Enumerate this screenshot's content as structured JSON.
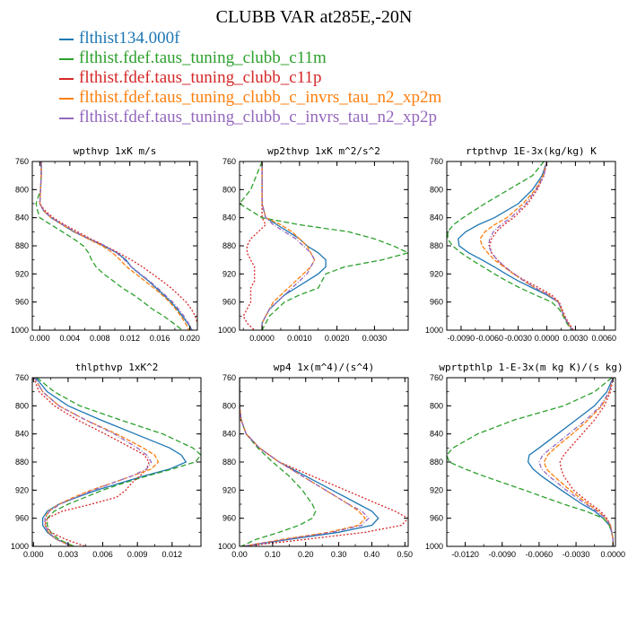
{
  "title": "CLUBB VAR at285E,-20N",
  "legend": [
    {
      "label": "flthist134.000f",
      "color": "#1f77b4",
      "dash": ""
    },
    {
      "label": "flthist.fdef.taus_tuning_clubb_c11m",
      "color": "#2ca02c",
      "dash": "6,3"
    },
    {
      "label": "flthist.fdef.taus_tuning_clubb_c11p",
      "color": "#d62728",
      "dash": "2,2"
    },
    {
      "label": "flthist.fdef.taus_tuning_clubb_c_invrs_tau_n2_xp2m",
      "color": "#ff7f0e",
      "dash": "5,2"
    },
    {
      "label": "flthist.fdef.taus_tuning_clubb_c_invrs_tau_n2_xp2p",
      "color": "#9467bd",
      "dash": "5,2,1,2"
    }
  ],
  "chart_data": [
    {
      "type": "line",
      "title": "wpthvp  1xK m/s",
      "xlim": [
        -0.001,
        0.021
      ],
      "xticks": [
        0,
        0.004,
        0.008,
        0.012,
        0.016,
        0.02
      ],
      "xticklabels": [
        "0.000",
        "0.004",
        "0.008",
        "0.012",
        "0.016",
        "0.020"
      ],
      "ylim": [
        760,
        1000
      ],
      "yticks": [
        760,
        800,
        840,
        880,
        920,
        960,
        1000
      ],
      "y": [
        760,
        780,
        800,
        820,
        830,
        840,
        850,
        860,
        870,
        880,
        890,
        900,
        910,
        920,
        930,
        940,
        950,
        960,
        970,
        980,
        990,
        1000
      ],
      "series": [
        {
          "values": [
            0.0002,
            0.0002,
            0.0001,
            0.0,
            0.0005,
            0.0015,
            0.003,
            0.0045,
            0.0065,
            0.0085,
            0.0103,
            0.0115,
            0.0122,
            0.0133,
            0.0145,
            0.0155,
            0.0165,
            0.0175,
            0.0183,
            0.019,
            0.0197,
            0.0203
          ]
        },
        {
          "values": [
            0.0002,
            0.0002,
            0.0001,
            -0.0005,
            -0.0003,
            0.0,
            0.0015,
            0.003,
            0.0045,
            0.0058,
            0.0065,
            0.0069,
            0.0075,
            0.0085,
            0.0098,
            0.011,
            0.0125,
            0.0138,
            0.015,
            0.0165,
            0.0178,
            0.019
          ]
        },
        {
          "values": [
            0.0002,
            0.0002,
            0.0001,
            0.0,
            0.0007,
            0.0018,
            0.0033,
            0.005,
            0.0068,
            0.0087,
            0.0105,
            0.0122,
            0.0137,
            0.015,
            0.0163,
            0.0175,
            0.0185,
            0.0195,
            0.0202,
            0.0207,
            0.021,
            0.0212
          ]
        },
        {
          "values": [
            0.0002,
            0.0002,
            0.0001,
            0.0,
            0.0005,
            0.0015,
            0.003,
            0.0046,
            0.0064,
            0.0083,
            0.0097,
            0.0107,
            0.0116,
            0.0128,
            0.014,
            0.0152,
            0.0163,
            0.0173,
            0.0181,
            0.0188,
            0.0194,
            0.0199
          ]
        },
        {
          "values": [
            0.0002,
            0.0002,
            0.0001,
            0.0,
            0.0005,
            0.0016,
            0.0031,
            0.0047,
            0.0066,
            0.0087,
            0.0102,
            0.0113,
            0.0122,
            0.0134,
            0.0146,
            0.0157,
            0.0167,
            0.0177,
            0.0185,
            0.0192,
            0.0198,
            0.0203
          ]
        }
      ]
    },
    {
      "type": "line",
      "title": "wp2thvp  1xK m^2/s^2",
      "xlim": [
        -0.0006,
        0.0039
      ],
      "xticks": [
        0,
        0.001,
        0.002,
        0.003
      ],
      "xticklabels": [
        "0.0000",
        "0.0010",
        "0.0020",
        "0.0030"
      ],
      "ylim": [
        760,
        1000
      ],
      "yticks": [
        760,
        800,
        840,
        880,
        920,
        960,
        1000
      ],
      "y": [
        760,
        800,
        820,
        840,
        850,
        860,
        870,
        880,
        890,
        900,
        910,
        920,
        930,
        940,
        950,
        960,
        970,
        980,
        990,
        1000
      ],
      "series": [
        {
          "values": [
            0.0,
            0.0,
            0.0,
            0.0001,
            0.0004,
            0.0007,
            0.001,
            0.0012,
            0.0015,
            0.0017,
            0.0017,
            0.0015,
            0.0012,
            0.0009,
            0.0006,
            0.0004,
            0.0002,
            0.0001,
            0.0,
            0.0
          ]
        },
        {
          "values": [
            0.0,
            -0.0003,
            -0.0006,
            0.0,
            0.001,
            0.0023,
            0.003,
            0.0035,
            0.0039,
            0.0032,
            0.0022,
            0.0017,
            0.0016,
            0.0015,
            0.001,
            0.0006,
            0.0004,
            0.0002,
            0.0001,
            0.0
          ]
        },
        {
          "values": [
            0.0,
            0.0,
            0.0,
            0.0,
            0.0001,
            -0.0001,
            -0.0003,
            -0.0004,
            -0.0004,
            -0.0003,
            -0.0002,
            -0.0002,
            -0.0002,
            -0.0003,
            -0.0003,
            -0.0003,
            -0.0004,
            -0.0005,
            -0.0004,
            -0.0002
          ]
        },
        {
          "values": [
            0.0,
            0.0,
            0.0,
            0.0001,
            0.0005,
            0.0008,
            0.001,
            0.0012,
            0.0013,
            0.0014,
            0.0013,
            0.0011,
            0.0009,
            0.0007,
            0.0005,
            0.0003,
            0.0002,
            0.0001,
            0.0,
            0.0
          ]
        },
        {
          "values": [
            0.0,
            0.0,
            0.0,
            0.0001,
            0.0003,
            0.0006,
            0.0009,
            0.0011,
            0.0013,
            0.0014,
            0.0013,
            0.0012,
            0.001,
            0.0008,
            0.0006,
            0.0004,
            0.0002,
            0.0001,
            0.0,
            0.0
          ]
        }
      ]
    },
    {
      "type": "line",
      "title": "rtpthvp  1E-3x(kg/kg) K",
      "xlim": [
        -0.0105,
        0.0072
      ],
      "xticks": [
        -0.009,
        -0.006,
        -0.003,
        0,
        0.003,
        0.006
      ],
      "xticklabels": [
        "-0.0090",
        "-0.0060",
        "-0.0030",
        "0.0000",
        "0.0030",
        "0.0060"
      ],
      "ylim": [
        760,
        1000
      ],
      "yticks": [
        760,
        800,
        840,
        880,
        920,
        960,
        1000
      ],
      "y": [
        760,
        780,
        800,
        820,
        840,
        850,
        860,
        870,
        880,
        890,
        900,
        910,
        920,
        930,
        940,
        950,
        960,
        970,
        980,
        990,
        1000
      ],
      "series": [
        {
          "values": [
            0.0,
            -0.0005,
            -0.0015,
            -0.003,
            -0.0055,
            -0.0072,
            -0.0085,
            -0.0093,
            -0.0092,
            -0.0082,
            -0.0068,
            -0.0055,
            -0.0043,
            -0.003,
            -0.0015,
            0.0,
            0.0012,
            0.0015,
            0.0018,
            0.0022,
            0.0027
          ]
        },
        {
          "values": [
            -0.0003,
            -0.0015,
            -0.004,
            -0.0065,
            -0.0088,
            -0.0098,
            -0.0104,
            -0.0104,
            -0.0099,
            -0.009,
            -0.0079,
            -0.0067,
            -0.0055,
            -0.0042,
            -0.0028,
            -0.0012,
            0.0005,
            0.0013,
            0.0017,
            0.0021,
            0.0026
          ]
        },
        {
          "values": [
            0.0,
            -0.0003,
            -0.001,
            -0.002,
            -0.0035,
            -0.0045,
            -0.0053,
            -0.0058,
            -0.006,
            -0.0058,
            -0.0052,
            -0.0044,
            -0.0035,
            -0.0022,
            -0.0008,
            0.0005,
            0.0013,
            0.0016,
            0.0019,
            0.0023,
            0.0028
          ]
        },
        {
          "values": [
            0.0,
            -0.0004,
            -0.0012,
            -0.0025,
            -0.0042,
            -0.0055,
            -0.0065,
            -0.007,
            -0.0068,
            -0.0062,
            -0.0055,
            -0.0045,
            -0.0035,
            -0.0024,
            -0.0012,
            0.0002,
            0.0012,
            0.0015,
            0.0018,
            0.0022,
            0.0027
          ]
        },
        {
          "values": [
            0.0,
            -0.0003,
            -0.0011,
            -0.0022,
            -0.0038,
            -0.0048,
            -0.0056,
            -0.006,
            -0.0061,
            -0.0058,
            -0.0052,
            -0.0044,
            -0.0034,
            -0.0024,
            -0.0012,
            0.0002,
            0.0012,
            0.0015,
            0.0018,
            0.0022,
            0.0027
          ]
        }
      ]
    },
    {
      "type": "line",
      "title": "thlpthvp  1xK^2",
      "xlim": [
        -0.0001,
        0.0145
      ],
      "xticks": [
        0,
        0.003,
        0.006,
        0.009,
        0.012
      ],
      "xticklabels": [
        "0.000",
        "0.003",
        "0.006",
        "0.009",
        "0.012"
      ],
      "ylim": [
        760,
        1000
      ],
      "yticks": [
        760,
        800,
        840,
        880,
        920,
        960,
        1000
      ],
      "y": [
        760,
        780,
        800,
        820,
        840,
        860,
        870,
        880,
        890,
        900,
        910,
        920,
        930,
        940,
        950,
        960,
        970,
        980,
        990,
        1000
      ],
      "series": [
        {
          "values": [
            0.0002,
            0.0012,
            0.003,
            0.0058,
            0.0088,
            0.0118,
            0.0128,
            0.0132,
            0.0118,
            0.0095,
            0.0075,
            0.0055,
            0.0038,
            0.0022,
            0.0012,
            0.0008,
            0.0008,
            0.0012,
            0.002,
            0.0035
          ]
        },
        {
          "values": [
            0.0003,
            0.0018,
            0.004,
            0.0075,
            0.0112,
            0.0138,
            0.0145,
            0.014,
            0.012,
            0.0098,
            0.0078,
            0.006,
            0.0045,
            0.003,
            0.0018,
            0.0012,
            0.0012,
            0.0015,
            0.0022,
            0.0035
          ]
        },
        {
          "values": [
            0.0,
            0.0005,
            0.0018,
            0.0038,
            0.0062,
            0.0085,
            0.0096,
            0.01,
            0.0098,
            0.0092,
            0.0085,
            0.008,
            0.0072,
            0.005,
            0.0025,
            0.0012,
            0.001,
            0.0015,
            0.0028,
            0.0045
          ]
        },
        {
          "values": [
            0.0001,
            0.0008,
            0.0022,
            0.0045,
            0.0072,
            0.0095,
            0.0105,
            0.0108,
            0.0102,
            0.0085,
            0.0068,
            0.005,
            0.0035,
            0.0022,
            0.0013,
            0.001,
            0.001,
            0.0013,
            0.002,
            0.0033
          ]
        },
        {
          "values": [
            0.0001,
            0.0008,
            0.0022,
            0.0045,
            0.007,
            0.009,
            0.0098,
            0.0102,
            0.0098,
            0.0085,
            0.0068,
            0.0052,
            0.0037,
            0.0023,
            0.0014,
            0.001,
            0.001,
            0.0013,
            0.002,
            0.0033
          ]
        }
      ]
    },
    {
      "type": "line",
      "title": "wp4  1x(m^4)/(s^4)",
      "xlim": [
        0,
        0.51
      ],
      "xticks": [
        0,
        0.1,
        0.2,
        0.3,
        0.4,
        0.5
      ],
      "xticklabels": [
        "0.00",
        "0.10",
        "0.20",
        "0.30",
        "0.40",
        "0.50"
      ],
      "ylim": [
        760,
        1000
      ],
      "yticks": [
        760,
        800,
        840,
        880,
        920,
        960,
        1000
      ],
      "y": [
        760,
        800,
        820,
        840,
        860,
        880,
        900,
        920,
        940,
        950,
        960,
        970,
        980,
        990,
        1000
      ],
      "series": [
        {
          "values": [
            0.0,
            0.0,
            0.005,
            0.02,
            0.06,
            0.12,
            0.2,
            0.28,
            0.36,
            0.4,
            0.42,
            0.4,
            0.3,
            0.15,
            0.01
          ]
        },
        {
          "values": [
            0.0,
            0.0,
            0.005,
            0.02,
            0.055,
            0.1,
            0.15,
            0.19,
            0.22,
            0.23,
            0.22,
            0.18,
            0.12,
            0.05,
            0.005
          ]
        },
        {
          "values": [
            0.0,
            0.0,
            0.005,
            0.02,
            0.06,
            0.12,
            0.22,
            0.32,
            0.42,
            0.47,
            0.51,
            0.49,
            0.38,
            0.2,
            0.01
          ]
        },
        {
          "values": [
            0.0,
            0.0,
            0.005,
            0.02,
            0.06,
            0.12,
            0.19,
            0.26,
            0.33,
            0.36,
            0.38,
            0.36,
            0.27,
            0.13,
            0.01
          ]
        },
        {
          "values": [
            0.0,
            0.0,
            0.005,
            0.02,
            0.06,
            0.12,
            0.19,
            0.26,
            0.33,
            0.37,
            0.39,
            0.37,
            0.28,
            0.14,
            0.01
          ]
        }
      ]
    },
    {
      "type": "line",
      "title": "wprtpthlp  1-E-3x(m kg K)/(s kg)",
      "xlim": [
        -0.0135,
        0.0002
      ],
      "xticks": [
        -0.012,
        -0.009,
        -0.006,
        -0.003,
        0
      ],
      "xticklabels": [
        "-0.0120",
        "-0.0090",
        "-0.0060",
        "-0.0030",
        "0.0000"
      ],
      "ylim": [
        760,
        1000
      ],
      "yticks": [
        760,
        800,
        840,
        880,
        920,
        960,
        1000
      ],
      "y": [
        760,
        780,
        800,
        820,
        840,
        860,
        870,
        880,
        890,
        900,
        920,
        940,
        950,
        960,
        970,
        980,
        990,
        1000
      ],
      "series": [
        {
          "values": [
            0.0,
            -0.0005,
            -0.0015,
            -0.003,
            -0.0045,
            -0.006,
            -0.0068,
            -0.0069,
            -0.0065,
            -0.0058,
            -0.0042,
            -0.0025,
            -0.0015,
            -0.0008,
            -0.0003,
            -0.0001,
            0.0,
            0.0
          ]
        },
        {
          "values": [
            -0.0001,
            -0.0015,
            -0.004,
            -0.008,
            -0.011,
            -0.013,
            -0.0135,
            -0.0133,
            -0.012,
            -0.0105,
            -0.0072,
            -0.004,
            -0.0022,
            -0.0008,
            -0.0003,
            -0.0001,
            0.0,
            0.0
          ]
        },
        {
          "values": [
            0.0,
            -0.0002,
            -0.0007,
            -0.0015,
            -0.0025,
            -0.0035,
            -0.004,
            -0.0043,
            -0.0042,
            -0.004,
            -0.0032,
            -0.0018,
            -0.001,
            -0.0005,
            -0.0002,
            -0.0001,
            0.0,
            0.0
          ]
        },
        {
          "values": [
            0.0,
            -0.0003,
            -0.0009,
            -0.002,
            -0.0033,
            -0.0047,
            -0.0053,
            -0.0056,
            -0.0054,
            -0.0048,
            -0.0035,
            -0.002,
            -0.0012,
            -0.0006,
            -0.0002,
            -0.0001,
            0.0,
            0.0
          ]
        },
        {
          "values": [
            0.0,
            -0.0003,
            -0.001,
            -0.0022,
            -0.0036,
            -0.005,
            -0.0057,
            -0.006,
            -0.0058,
            -0.0052,
            -0.0038,
            -0.0022,
            -0.0013,
            -0.0006,
            -0.0002,
            -0.0001,
            0.0,
            0.0
          ]
        }
      ]
    }
  ]
}
